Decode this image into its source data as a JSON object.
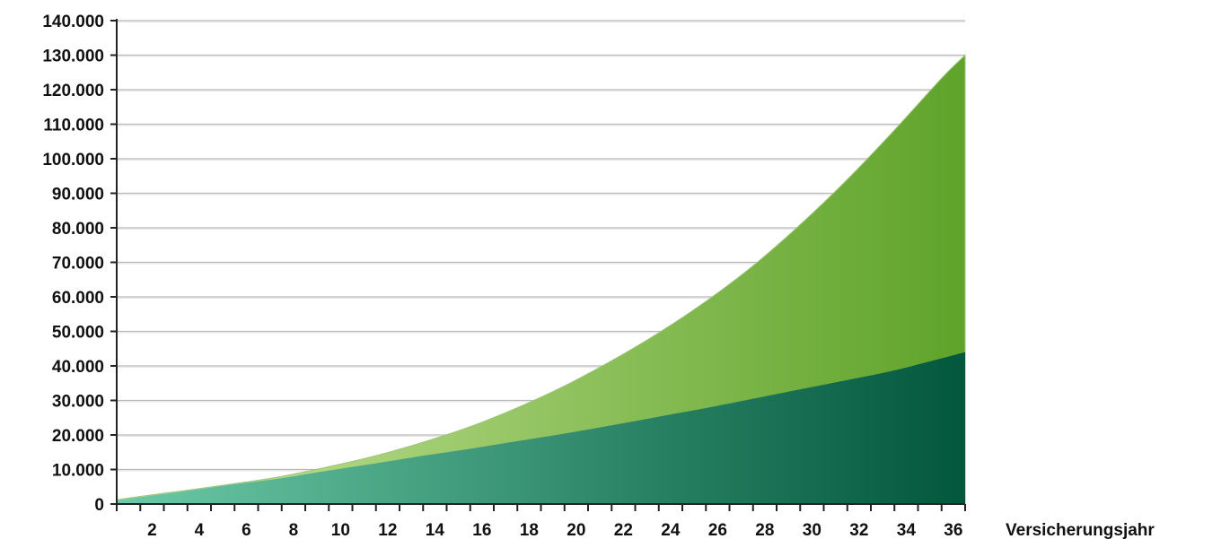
{
  "chart_data": {
    "type": "area",
    "xlabel": "Versicherungsjahr",
    "ylabel": "",
    "x_range": [
      1,
      37
    ],
    "ylim": [
      0,
      140000
    ],
    "y_ticks": [
      0,
      10000,
      20000,
      30000,
      40000,
      50000,
      60000,
      70000,
      80000,
      90000,
      100000,
      110000,
      120000,
      130000,
      140000
    ],
    "y_tick_labels": [
      "0",
      "10.000",
      "20.000",
      "30.000",
      "40.000",
      "50.000",
      "60.000",
      "70.000",
      "80.000",
      "90.000",
      "100.000",
      "110.000",
      "120.000",
      "130.000",
      "140.000"
    ],
    "x_ticks": [
      2,
      4,
      6,
      8,
      10,
      12,
      14,
      16,
      18,
      20,
      22,
      24,
      26,
      28,
      30,
      32,
      34,
      36
    ],
    "x_tick_labels": [
      "2",
      "4",
      "6",
      "8",
      "10",
      "12",
      "14",
      "16",
      "18",
      "20",
      "22",
      "24",
      "26",
      "28",
      "30",
      "32",
      "34",
      "36"
    ],
    "grid": true,
    "stacked": false,
    "series": [
      {
        "x": [
          1,
          2,
          4,
          6,
          8,
          10,
          12,
          14,
          16,
          18,
          20,
          22,
          24,
          26,
          28,
          30,
          32,
          34,
          36,
          37
        ],
        "values": [
          1200,
          2200,
          4000,
          5900,
          8000,
          10800,
          14000,
          17900,
          22400,
          27900,
          34200,
          41500,
          49600,
          58700,
          69000,
          80900,
          94000,
          108300,
          123300,
          130000
        ],
        "colors": [
          "#c7e59a",
          "#5fa32a"
        ]
      },
      {
        "x": [
          1,
          2,
          4,
          6,
          8,
          10,
          12,
          14,
          16,
          18,
          20,
          22,
          24,
          26,
          28,
          30,
          32,
          34,
          36,
          37
        ],
        "values": [
          1000,
          2000,
          3800,
          5700,
          7500,
          9700,
          11800,
          14000,
          16000,
          18200,
          20400,
          22800,
          25300,
          27800,
          30500,
          33200,
          35900,
          38700,
          42200,
          44000
        ],
        "colors": [
          "#6ccaa8",
          "#02573c"
        ]
      }
    ]
  }
}
